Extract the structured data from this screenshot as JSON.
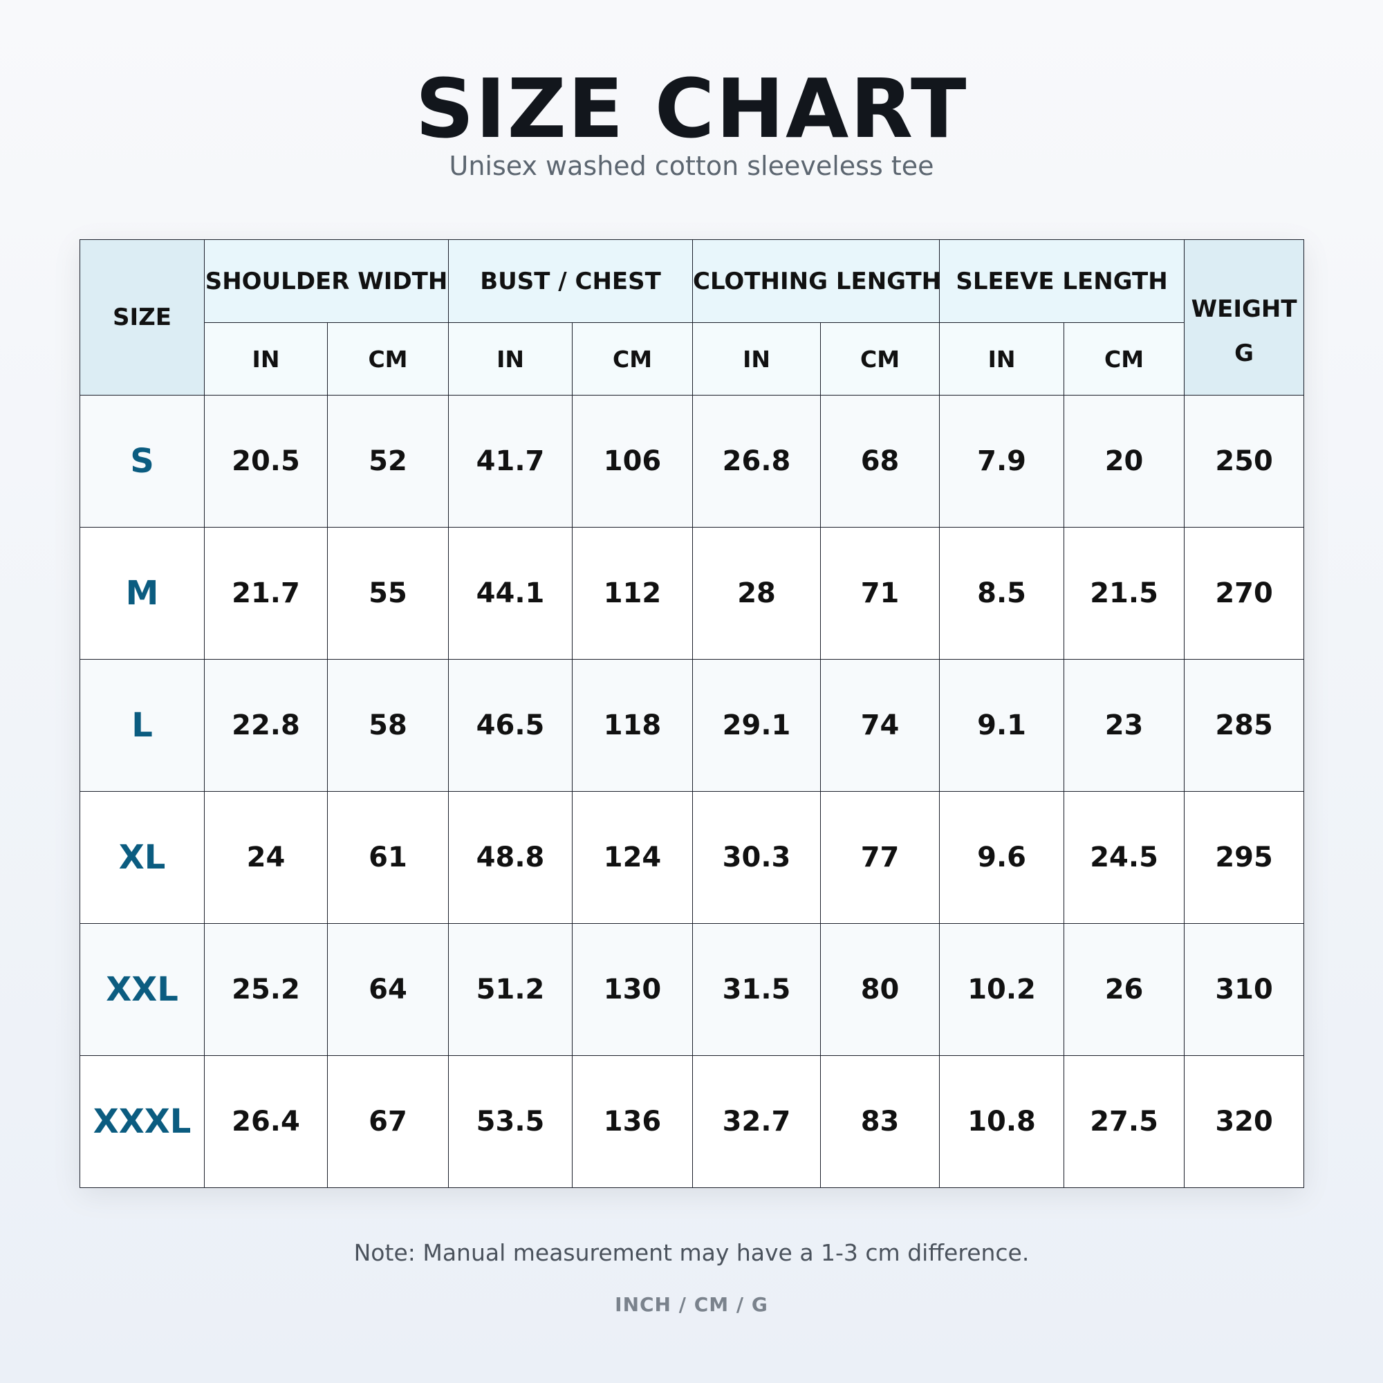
{
  "header": {
    "title": "SIZE CHART",
    "subtitle": "Unisex washed cotton sleeveless tee"
  },
  "table": {
    "size_header": "SIZE",
    "groups": [
      {
        "name": "SHOULDER WIDTH",
        "units": [
          "IN",
          "CM"
        ]
      },
      {
        "name": "BUST / CHEST",
        "units": [
          "IN",
          "CM"
        ]
      },
      {
        "name": "CLOTHING LENGTH",
        "units": [
          "IN",
          "CM"
        ]
      },
      {
        "name": "SLEEVE LENGTH",
        "units": [
          "IN",
          "CM"
        ]
      }
    ],
    "weight": {
      "name": "WEIGHT",
      "unit": "G"
    },
    "rows": [
      [
        "S",
        20.5,
        52,
        41.7,
        106,
        26.8,
        68,
        7.9,
        20,
        250
      ],
      [
        "M",
        21.7,
        55,
        44.1,
        112,
        28,
        71,
        8.5,
        21.5,
        270
      ],
      [
        "L",
        22.8,
        58,
        46.5,
        118,
        29.1,
        74,
        9.1,
        23,
        285
      ],
      [
        "XL",
        24,
        61,
        48.8,
        124,
        30.3,
        77,
        9.6,
        24.5,
        295
      ],
      [
        "XXL",
        25.2,
        64,
        51.2,
        130,
        31.5,
        80,
        10.2,
        26,
        310
      ],
      [
        "XXXL",
        26.4,
        67,
        53.5,
        136,
        32.7,
        83,
        10.8,
        27.5,
        320
      ]
    ]
  },
  "footer": {
    "note": "Note: Manual measurement may have a 1-3 cm difference.",
    "units": "INCH / CM / G"
  }
}
